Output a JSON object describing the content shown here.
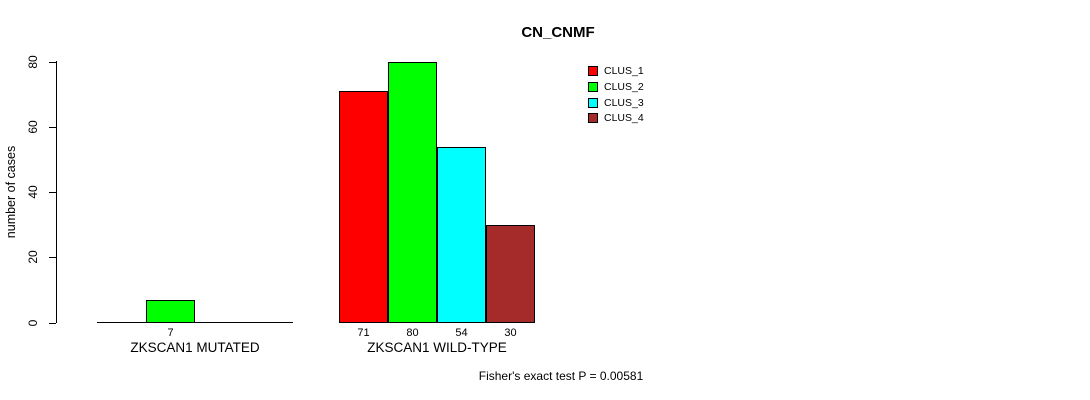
{
  "chart_data": {
    "type": "bar",
    "title": "CN_CNMF",
    "ylabel": "number of cases",
    "ylim": [
      0,
      80
    ],
    "yticks": [
      0,
      20,
      40,
      60,
      80
    ],
    "grid": false,
    "legend_position": "top-right-inside",
    "series": [
      {
        "name": "CLUS_1",
        "color": "#ff0000"
      },
      {
        "name": "CLUS_2",
        "color": "#00ff00"
      },
      {
        "name": "CLUS_3",
        "color": "#00ffff"
      },
      {
        "name": "CLUS_4",
        "color": "#a52a2a"
      }
    ],
    "groups": [
      {
        "label": "ZKSCAN1 MUTATED",
        "values": [
          0,
          7,
          0,
          0
        ]
      },
      {
        "label": "ZKSCAN1 WILD-TYPE",
        "values": [
          71,
          80,
          54,
          30
        ]
      }
    ],
    "footer": "Fisher's exact test P = 0.00581",
    "axis_color": "#000000",
    "bar_border_color": "#000000",
    "text_color": "#000000",
    "background_color": "#ffffff"
  }
}
